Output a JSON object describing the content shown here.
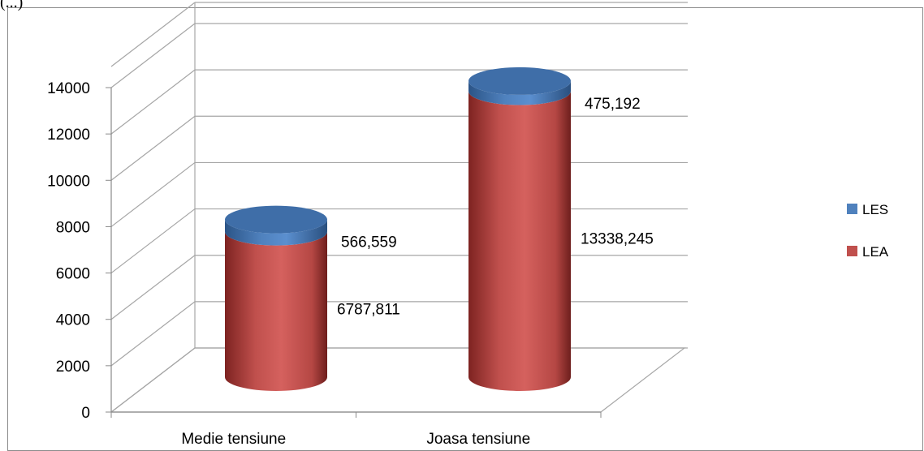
{
  "corner_label": "(...)",
  "chart_data": {
    "type": "bar",
    "subtype": "3d-stacked-cylinder",
    "categories": [
      "Medie tensiune",
      "Joasa tensiune"
    ],
    "series": [
      {
        "name": "LEA",
        "values": [
          6787.811,
          13338.245
        ],
        "labels": [
          "6787,811",
          "13338,245"
        ],
        "color": "#c0504d"
      },
      {
        "name": "LES",
        "values": [
          566.559,
          475.192
        ],
        "labels": [
          "566,559",
          "475,192"
        ],
        "color": "#4f81bd"
      }
    ],
    "y_ticks": [
      "0",
      "2000",
      "4000",
      "6000",
      "8000",
      "10000",
      "12000",
      "14000"
    ],
    "ylim": [
      0,
      14000
    ],
    "grid": true,
    "legend_position": "right",
    "legend": [
      "LES",
      "LEA"
    ]
  }
}
